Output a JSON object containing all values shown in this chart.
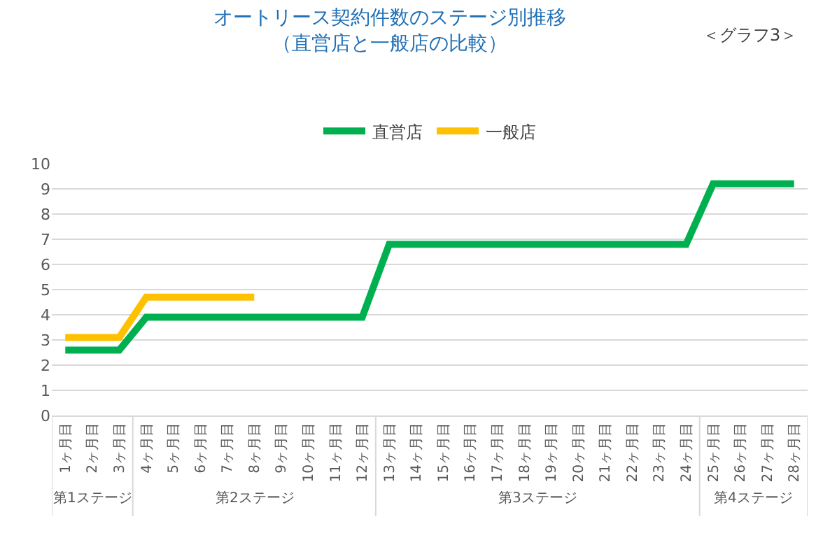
{
  "chart_data": {
    "type": "line",
    "title": "オートリース契約件数のステージ別推移",
    "subtitle": "（直営店と一般店の比較）",
    "categories": [
      "1ヶ月目",
      "2ヶ月目",
      "3ヶ月目",
      "4ヶ月目",
      "5ヶ月目",
      "6ヶ月目",
      "7ヶ月目",
      "8ヶ月目",
      "9ヶ月目",
      "10ヶ月目",
      "11ヶ月目",
      "12ヶ月目",
      "13ヶ月目",
      "14ヶ月目",
      "15ヶ月目",
      "16ヶ月目",
      "17ヶ月目",
      "18ヶ月目",
      "19ヶ月目",
      "20ヶ月目",
      "21ヶ月目",
      "22ヶ月目",
      "23ヶ月目",
      "24ヶ月目",
      "25ヶ月目",
      "26ヶ月目",
      "27ヶ月目",
      "28ヶ月目"
    ],
    "series": [
      {
        "name": "直営店",
        "color": "#00b050",
        "values": [
          2.6,
          2.6,
          2.6,
          3.9,
          3.9,
          3.9,
          3.9,
          3.9,
          3.9,
          3.9,
          3.9,
          3.9,
          6.8,
          6.8,
          6.8,
          6.8,
          6.8,
          6.8,
          6.8,
          6.8,
          6.8,
          6.8,
          6.8,
          6.8,
          9.2,
          9.2,
          9.2,
          9.2
        ]
      },
      {
        "name": "一般店",
        "color": "#ffc000",
        "values": [
          3.1,
          3.1,
          3.1,
          4.7,
          4.7,
          4.7,
          4.7,
          4.7,
          null,
          null,
          null,
          null,
          null,
          null,
          null,
          null,
          null,
          null,
          null,
          null,
          null,
          null,
          null,
          null,
          null,
          null,
          null,
          null
        ]
      }
    ],
    "ylim": [
      0,
      10
    ],
    "yticks": [
      0,
      1,
      2,
      3,
      4,
      5,
      6,
      7,
      8,
      9,
      10
    ],
    "grid": "y",
    "legend": "top",
    "marker": "none",
    "line_style": "solid",
    "annotations": [
      "＜グラフ3＞",
      "第1ステージ",
      "第2ステージ",
      "第3ステージ",
      "第4ステージ"
    ]
  }
}
